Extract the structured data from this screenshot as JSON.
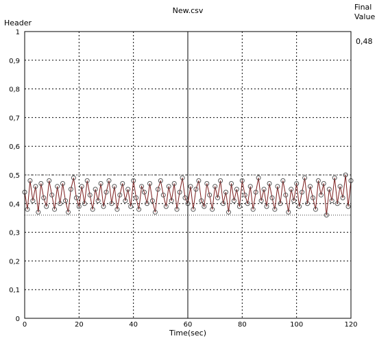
{
  "chart_data": {
    "type": "line",
    "title": "New.csv",
    "ylabel": "Header",
    "xlabel": "Time(sec)",
    "side_label_line1": "Final",
    "side_label_line2": "Value",
    "final_value": "0,48",
    "xlim": [
      0,
      120
    ],
    "ylim": [
      0,
      1
    ],
    "x_ticks": [
      0,
      20,
      40,
      60,
      80,
      100,
      120
    ],
    "x_tick_labels": [
      "0",
      "20",
      "40",
      "60",
      "80",
      "100",
      "120"
    ],
    "y_ticks": [
      0,
      0.1,
      0.2,
      0.3,
      0.4,
      0.5,
      0.6,
      0.7,
      0.8,
      0.9,
      1
    ],
    "y_tick_labels": [
      "0",
      "0,1",
      "0,2",
      "0,3",
      "0,4",
      "0,5",
      "0,6",
      "0,7",
      "0,8",
      "0,9",
      "1"
    ],
    "grid": true,
    "cursor_x": 60,
    "series": [
      {
        "color": "#7a1a1a",
        "marker_color": "#555555",
        "x_start": 0,
        "x_step": 1,
        "values": [
          0.44,
          0.38,
          0.48,
          0.41,
          0.46,
          0.37,
          0.47,
          0.42,
          0.39,
          0.48,
          0.43,
          0.38,
          0.46,
          0.4,
          0.47,
          0.41,
          0.37,
          0.45,
          0.49,
          0.42,
          0.39,
          0.46,
          0.4,
          0.48,
          0.43,
          0.38,
          0.45,
          0.41,
          0.47,
          0.39,
          0.44,
          0.48,
          0.4,
          0.46,
          0.38,
          0.43,
          0.47,
          0.41,
          0.45,
          0.39,
          0.48,
          0.42,
          0.38,
          0.46,
          0.44,
          0.4,
          0.47,
          0.41,
          0.37,
          0.45,
          0.48,
          0.43,
          0.39,
          0.46,
          0.41,
          0.47,
          0.38,
          0.44,
          0.49,
          0.42,
          0.4,
          0.46,
          0.38,
          0.45,
          0.48,
          0.41,
          0.39,
          0.47,
          0.43,
          0.38,
          0.46,
          0.42,
          0.48,
          0.4,
          0.44,
          0.37,
          0.47,
          0.41,
          0.45,
          0.39,
          0.48,
          0.43,
          0.4,
          0.46,
          0.38,
          0.44,
          0.49,
          0.41,
          0.45,
          0.39,
          0.47,
          0.42,
          0.38,
          0.46,
          0.4,
          0.48,
          0.43,
          0.37,
          0.45,
          0.41,
          0.47,
          0.39,
          0.44,
          0.49,
          0.4,
          0.46,
          0.42,
          0.38,
          0.48,
          0.43,
          0.47,
          0.36,
          0.45,
          0.41,
          0.49,
          0.4,
          0.46,
          0.42,
          0.5,
          0.39,
          0.48
        ]
      }
    ]
  }
}
